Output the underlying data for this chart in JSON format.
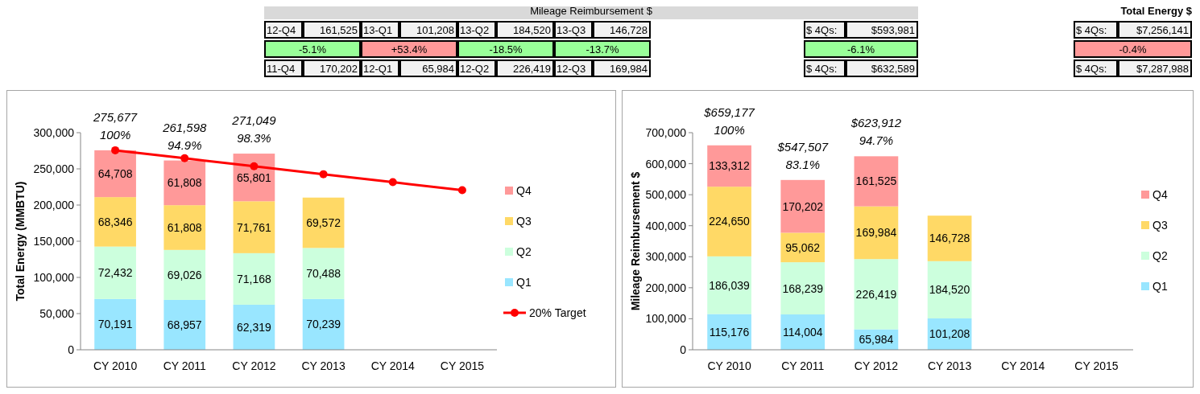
{
  "chart_data": [
    {
      "type": "other",
      "title": "Mileage Reimbursement $",
      "annotations": [
        "12-Q4",
        "161,525",
        "13-Q1",
        "101,208",
        "13-Q2",
        "184,520",
        "13-Q3",
        "146,728",
        "$ 4Qs:",
        "$593,981",
        "-5.1%",
        "+53.4%",
        "-18.5%",
        "-13.7%",
        "-6.1%",
        "11-Q4",
        "170,202",
        "12-Q1",
        "65,984",
        "12-Q2",
        "226,419",
        "12-Q3",
        "169,984",
        "$ 4Qs:",
        "$632,589"
      ],
      "colors": [
        null,
        null,
        null,
        null,
        null,
        null,
        null,
        null,
        null,
        null,
        "#99ff99",
        "#ff9999",
        "#99ff99",
        "#99ff99",
        "#99ff99",
        null,
        null,
        null,
        null,
        null,
        null,
        null,
        null,
        null,
        null
      ]
    },
    {
      "type": "other",
      "title": "Total Energy $",
      "annotations": [
        "$ 4Qs:",
        "$7,256,141",
        "-0.4%",
        "$ 4Qs:",
        "$7,287,988"
      ],
      "colors": [
        null,
        null,
        "#ff9999",
        null,
        null
      ]
    },
    {
      "type": "bar",
      "stacked": true,
      "ylabel": "Total Energy (MMBTU)",
      "categories": [
        "CY 2010",
        "CY 2011",
        "CY 2012",
        "CY 2013",
        "CY 2014",
        "CY 2015"
      ],
      "series": [
        {
          "name": "Q1",
          "color": "#99e6ff",
          "values": [
            70191,
            68957,
            62319,
            70239,
            null,
            null
          ],
          "value_labels": [
            "70,191",
            "68,957",
            "62,319",
            "70,239",
            null,
            null
          ]
        },
        {
          "name": "Q2",
          "color": "#ccffdd",
          "values": [
            72432,
            69026,
            71168,
            70488,
            null,
            null
          ],
          "value_labels": [
            "72,432",
            "69,026",
            "71,168",
            "70,488",
            null,
            null
          ]
        },
        {
          "name": "Q3",
          "color": "#ffd966",
          "values": [
            68346,
            61808,
            71761,
            69572,
            null,
            null
          ],
          "value_labels": [
            "68,346",
            "61,808",
            "71,761",
            "69,572",
            null,
            null
          ]
        },
        {
          "name": "Q4",
          "color": "#ff9999",
          "values": [
            64708,
            61808,
            65801,
            null,
            null,
            null
          ],
          "value_labels": [
            "64,708",
            "61,808",
            "65,801",
            null,
            null,
            null
          ]
        },
        {
          "name": "20% Target",
          "type": "line",
          "color": "#ff0000",
          "values": [
            275677,
            264650,
            253600,
            242600,
            231600,
            220500
          ]
        }
      ],
      "marker": "circle",
      "totals": [
        "275,677\n100%",
        "261,598\n94.9%",
        "271,049\n98.3%",
        null,
        null,
        null
      ],
      "ylim": [
        0,
        300000
      ],
      "yticks": [
        0,
        {
          "value": 50000,
          "label": "50,000"
        },
        {
          "value": 100000,
          "label": "100,000"
        },
        {
          "value": 150000,
          "label": "150,000"
        },
        {
          "value": 200000,
          "label": "200,000"
        },
        {
          "value": 250000,
          "label": "250,000"
        },
        {
          "value": 300000,
          "label": "300,000"
        }
      ],
      "legend": "right"
    },
    {
      "type": "bar",
      "stacked": true,
      "ylabel": "Mileage Reimbursement $",
      "categories": [
        "CY 2010",
        "CY 2011",
        "CY 2012",
        "CY 2013",
        "CY 2014",
        "CY 2015"
      ],
      "series": [
        {
          "name": "Q1",
          "color": "#99e6ff",
          "values": [
            115176,
            114004,
            65984,
            101208,
            null,
            null
          ],
          "value_labels": [
            "115,176",
            "114,004",
            "65,984",
            "101,208",
            null,
            null
          ]
        },
        {
          "name": "Q2",
          "color": "#ccffdd",
          "values": [
            186039,
            168239,
            226419,
            184520,
            null,
            null
          ],
          "value_labels": [
            "186,039",
            "168,239",
            "226,419",
            "184,520",
            null,
            null
          ]
        },
        {
          "name": "Q3",
          "color": "#ffd966",
          "values": [
            224650,
            95062,
            169984,
            146728,
            null,
            null
          ],
          "value_labels": [
            "224,650",
            "95,062",
            "169,984",
            "146,728",
            null,
            null
          ]
        },
        {
          "name": "Q4",
          "color": "#ff9999",
          "values": [
            133312,
            170202,
            161525,
            null,
            null,
            null
          ],
          "value_labels": [
            "133,312",
            "170,202",
            "161,525",
            null,
            null,
            null
          ]
        }
      ],
      "totals": [
        "$659,177\n100%",
        "$547,507\n83.1%",
        "$623,912\n94.7%",
        null,
        null,
        null
      ],
      "ylim": [
        0,
        700000
      ],
      "yticks": [
        0,
        {
          "value": 100000,
          "label": "100,000"
        },
        {
          "value": 200000,
          "label": "200,000"
        },
        {
          "value": 300000,
          "label": "300,000"
        },
        {
          "value": 400000,
          "label": "400,000"
        },
        {
          "value": 500000,
          "label": "500,000"
        },
        {
          "value": 600000,
          "label": "600,000"
        },
        {
          "value": 700000,
          "label": "700,000"
        }
      ],
      "legend": "right"
    }
  ]
}
